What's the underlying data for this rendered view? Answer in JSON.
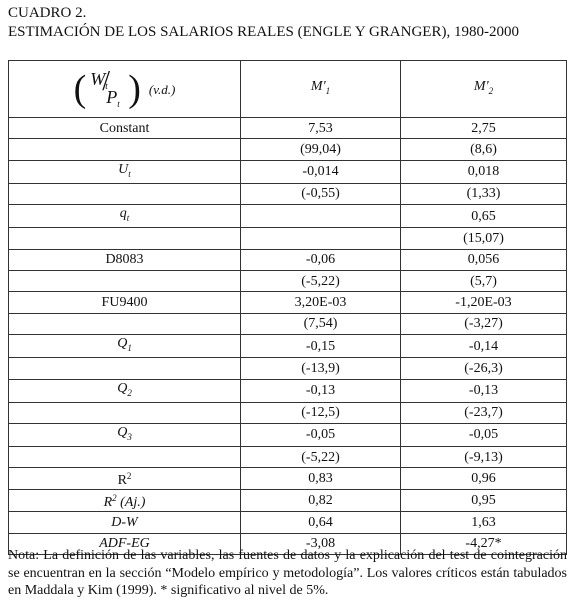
{
  "header": {
    "label": "CUADRO 2.",
    "title": "ESTIMACIÓN DE LOS SALARIOS REALES (ENGLE Y GRANGER), 1980-2000"
  },
  "table": {
    "corner": {
      "open": "(",
      "numerator": "W",
      "numerator_sub": "t",
      "slash": "/",
      "denominator": "P",
      "denominator_sub": "t",
      "close": ")",
      "note": "(v.d.)"
    },
    "columns": [
      {
        "base": "M'",
        "sub": "1",
        "italic": true
      },
      {
        "base": "M'",
        "sub": "2",
        "italic": true
      }
    ],
    "rows": [
      {
        "label": "Constant",
        "cells": [
          "7,53",
          "2,75"
        ]
      },
      {
        "label": null,
        "cells": [
          "(99,04)",
          "(8,6)"
        ]
      },
      {
        "label": {
          "base": "U",
          "sub": "t",
          "italic": true
        },
        "cells": [
          "-0,014",
          "0,018"
        ]
      },
      {
        "label": null,
        "cells": [
          "(-0,55)",
          "(1,33)"
        ]
      },
      {
        "label": {
          "base": "q",
          "sub": "t",
          "italic": true
        },
        "cells": [
          null,
          "0,65"
        ]
      },
      {
        "label": null,
        "cells": [
          null,
          "(15,07)"
        ]
      },
      {
        "label": "D8083",
        "cells": [
          "-0,06",
          "0,056"
        ]
      },
      {
        "label": null,
        "cells": [
          "(-5,22)",
          "(5,7)"
        ]
      },
      {
        "label": "FU9400",
        "cells": [
          "3,20E-03",
          "-1,20E-03"
        ]
      },
      {
        "label": null,
        "cells": [
          "(7,54)",
          "(-3,27)"
        ]
      },
      {
        "label": {
          "base": "Q",
          "sub": "1",
          "italic": true
        },
        "cells": [
          "-0,15",
          "-0,14"
        ]
      },
      {
        "label": null,
        "cells": [
          "(-13,9)",
          "(-26,3)"
        ]
      },
      {
        "label": {
          "base": "Q",
          "sub": "2",
          "italic": true
        },
        "cells": [
          "-0,13",
          "-0,13"
        ]
      },
      {
        "label": null,
        "cells": [
          "(-12,5)",
          "(-23,7)"
        ]
      },
      {
        "label": {
          "base": "Q",
          "sub": "3",
          "italic": true
        },
        "cells": [
          "-0,05",
          "-0,05"
        ]
      },
      {
        "label": null,
        "cells": [
          "(-5,22)",
          "(-9,13)"
        ]
      },
      {
        "label": {
          "base": "R",
          "sup": "2"
        },
        "cells": [
          "0,83",
          "0,96"
        ]
      },
      {
        "label": {
          "base": "R",
          "sup": "2",
          "after": " (Aj.)",
          "italic": true
        },
        "cells": [
          "0,82",
          "0,95"
        ]
      },
      {
        "label": {
          "base": "D-W",
          "italic": true
        },
        "cells": [
          "0,64",
          "1,63"
        ]
      },
      {
        "label": {
          "base": "ADF-EG",
          "italic": true
        },
        "cells": [
          "-3,08",
          "-4,27*"
        ]
      }
    ]
  },
  "note": "Nota: La definición de las variables, las fuentes de datos y la explicación del test de cointegración se encuentran en la sección “Modelo empírico y metodología”. Los valores críticos están tabulados en Maddala y Kim (1999). * significativo al nivel de 5%."
}
